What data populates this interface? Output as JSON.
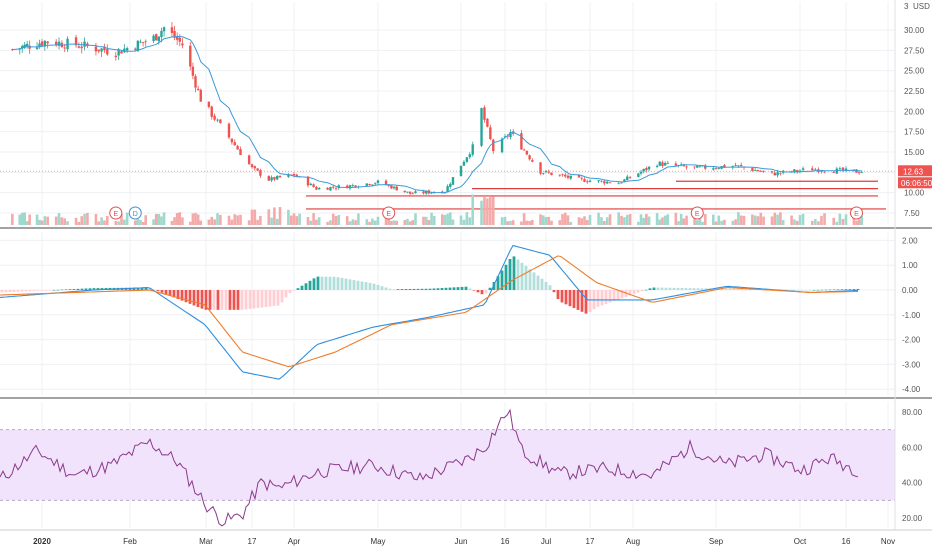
{
  "chart_data": [
    {
      "panel": "price",
      "type": "candlestick",
      "currency": "USD",
      "y_ticks": [
        "3",
        "30.00",
        "27.50",
        "25.00",
        "22.50",
        "20.00",
        "17.50",
        "15.00",
        "12.50",
        "10.00",
        "7.50"
      ],
      "ylim": [
        7.5,
        30
      ],
      "last_price_label": "12.63",
      "countdown_label": "06:06:50",
      "moving_average": "blue line, ~10-period",
      "horizontal_levels": [
        11.4,
        10.5,
        9.6,
        8.0
      ],
      "events": [
        {
          "label": "E",
          "date": "2020-01-27",
          "color": "#e05050"
        },
        {
          "label": "D",
          "date": "2020-02-03",
          "color": "#3a8fd8"
        },
        {
          "label": "E",
          "date": "2020-05-05",
          "color": "#e05050"
        },
        {
          "label": "E",
          "date": "2020-08-25",
          "color": "#e05050"
        },
        {
          "label": "E",
          "date": "2020-10-20",
          "color": "#e05050"
        }
      ],
      "approx_close_path": [
        [
          "2019-12-20",
          27.6
        ],
        [
          "2020-01-02",
          28.6
        ],
        [
          "2020-01-13",
          28.2
        ],
        [
          "2020-01-27",
          27.3
        ],
        [
          "2020-02-10",
          29.0
        ],
        [
          "2020-02-14",
          30.3
        ],
        [
          "2020-02-21",
          28.2
        ],
        [
          "2020-02-28",
          21.5
        ],
        [
          "2020-03-09",
          16.8
        ],
        [
          "2020-03-17",
          13.0
        ],
        [
          "2020-03-23",
          11.6
        ],
        [
          "2020-04-01",
          12.2
        ],
        [
          "2020-04-09",
          10.5
        ],
        [
          "2020-04-20",
          10.8
        ],
        [
          "2020-05-01",
          11.3
        ],
        [
          "2020-05-13",
          9.9
        ],
        [
          "2020-05-26",
          10.2
        ],
        [
          "2020-06-05",
          15.6
        ],
        [
          "2020-06-08",
          20.2
        ],
        [
          "2020-06-12",
          15.2
        ],
        [
          "2020-06-18",
          17.4
        ],
        [
          "2020-06-29",
          12.6
        ],
        [
          "2020-07-13",
          11.6
        ],
        [
          "2020-07-27",
          11.2
        ],
        [
          "2020-08-10",
          13.6
        ],
        [
          "2020-08-24",
          13.0
        ],
        [
          "2020-09-08",
          13.3
        ],
        [
          "2020-09-21",
          12.3
        ],
        [
          "2020-10-05",
          12.9
        ],
        [
          "2020-10-19",
          12.6
        ]
      ]
    },
    {
      "panel": "macd",
      "type": "line+histogram",
      "y_ticks": [
        "2.00",
        "1.00",
        "0.00",
        "-1.00",
        "-2.00",
        "-3.00",
        "-4.00"
      ],
      "ylim": [
        -4,
        2
      ],
      "series": [
        {
          "color": "#2e8fe0",
          "values_path": [
            [
              0,
              -0.3
            ],
            [
              0.1,
              0.0
            ],
            [
              0.16,
              0.1
            ],
            [
              0.22,
              -1.4
            ],
            [
              0.26,
              -3.3
            ],
            [
              0.3,
              -3.6
            ],
            [
              0.34,
              -2.2
            ],
            [
              0.4,
              -1.5
            ],
            [
              0.46,
              -1.1
            ],
            [
              0.52,
              -0.6
            ],
            [
              0.55,
              1.8
            ],
            [
              0.59,
              1.4
            ],
            [
              0.63,
              -0.4
            ],
            [
              0.7,
              -0.4
            ],
            [
              0.78,
              0.15
            ],
            [
              0.87,
              -0.1
            ],
            [
              0.93,
              0.0
            ]
          ]
        },
        {
          "color": "#f07d2a",
          "values_path": [
            [
              0,
              -0.2
            ],
            [
              0.16,
              0.0
            ],
            [
              0.22,
              -0.6
            ],
            [
              0.26,
              -2.5
            ],
            [
              0.31,
              -3.1
            ],
            [
              0.36,
              -2.5
            ],
            [
              0.42,
              -1.4
            ],
            [
              0.5,
              -0.9
            ],
            [
              0.55,
              0.4
            ],
            [
              0.6,
              1.4
            ],
            [
              0.64,
              0.3
            ],
            [
              0.7,
              -0.5
            ],
            [
              0.78,
              0.1
            ],
            [
              0.87,
              -0.1
            ],
            [
              0.93,
              -0.05
            ]
          ]
        }
      ]
    },
    {
      "panel": "rsi",
      "type": "line",
      "y_ticks": [
        "80.00",
        "60.00",
        "40.00",
        "20.00"
      ],
      "ylim": [
        15,
        85
      ],
      "band": [
        30,
        70
      ],
      "color": "#8a3a8a",
      "values_path": [
        [
          0,
          42
        ],
        [
          0.04,
          58
        ],
        [
          0.08,
          44
        ],
        [
          0.12,
          50
        ],
        [
          0.16,
          63
        ],
        [
          0.19,
          52
        ],
        [
          0.22,
          28
        ],
        [
          0.24,
          18
        ],
        [
          0.26,
          22
        ],
        [
          0.28,
          40
        ],
        [
          0.3,
          37
        ],
        [
          0.34,
          46
        ],
        [
          0.4,
          50
        ],
        [
          0.45,
          42
        ],
        [
          0.5,
          53
        ],
        [
          0.52,
          60
        ],
        [
          0.545,
          81
        ],
        [
          0.56,
          58
        ],
        [
          0.6,
          45
        ],
        [
          0.65,
          48
        ],
        [
          0.7,
          44
        ],
        [
          0.74,
          60
        ],
        [
          0.78,
          50
        ],
        [
          0.82,
          56
        ],
        [
          0.86,
          47
        ],
        [
          0.89,
          54
        ],
        [
          0.92,
          47
        ],
        [
          0.935,
          51
        ]
      ]
    }
  ],
  "x_axis": {
    "labels": [
      "2020",
      "Feb",
      "Mar",
      "17",
      "Apr",
      "May",
      "Jun",
      "16",
      "Jul",
      "17",
      "Aug",
      "Sep",
      "Oct",
      "16",
      "Nov"
    ]
  }
}
